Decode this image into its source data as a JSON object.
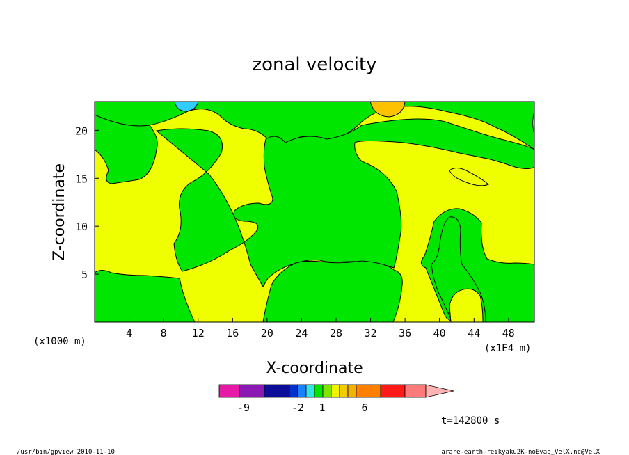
{
  "chart_data": {
    "type": "heatmap",
    "title": "zonal velocity",
    "xlabel": "X-coordinate",
    "ylabel": "Z-coordinate",
    "x_unit_label": "(x1E4 m)",
    "y_unit_label": "(x1000 m)",
    "x_ticks": [
      "4",
      "8",
      "12",
      "16",
      "20",
      "24",
      "28",
      "32",
      "36",
      "40",
      "44",
      "48"
    ],
    "y_ticks": [
      "5",
      "10",
      "15",
      "20"
    ],
    "xlim": [
      0,
      51
    ],
    "ylim": [
      0,
      23
    ],
    "colorbar": {
      "colors": [
        "#e61aa6",
        "#8a1ab3",
        "#0d0d99",
        "#0033cc",
        "#1a80ff",
        "#33e6e6",
        "#00e600",
        "#80e600",
        "#f2f200",
        "#f2cc00",
        "#f2b200",
        "#ff7f00",
        "#ff1a1a",
        "#ff7a7a",
        "#ffb3b3"
      ],
      "labels": [
        "-9",
        "-2",
        "1",
        "6"
      ]
    },
    "regions": {
      "background_color": "#f0ff00",
      "green_color": "#00e600",
      "cyan_color": "#33ccff",
      "orange_color": "#ffc200"
    },
    "time_label": "t=142800 s"
  },
  "footer": {
    "left": "/usr/bin/gpview   2010-11-10",
    "right": "arare-earth-reikyaku2K-noEvap_VelX.nc@VelX"
  }
}
